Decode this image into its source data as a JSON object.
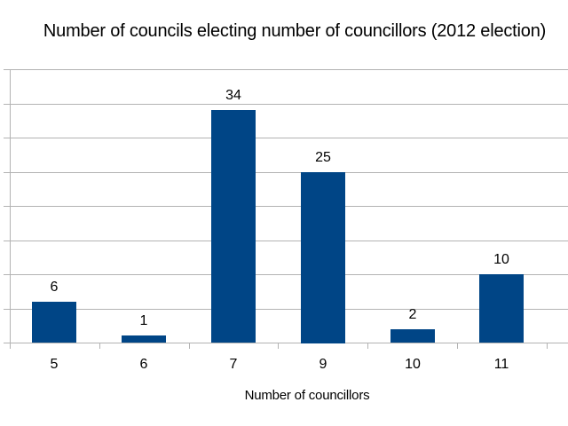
{
  "chart_data": {
    "type": "bar",
    "title": "Number of councils electing number of councillors (2012 election)",
    "xlabel": "Number of councillors",
    "ylabel": "",
    "categories": [
      "5",
      "6",
      "7",
      "9",
      "10",
      "11"
    ],
    "values": [
      6,
      1,
      34,
      25,
      2,
      10
    ],
    "data_labels": [
      "6",
      "1",
      "34",
      "25",
      "2",
      "10"
    ],
    "ylim": [
      0,
      40
    ],
    "y_grid_step": 5,
    "grid": true,
    "legend": null,
    "bar_color": "#004586",
    "grid_color": "#b3b3b3"
  }
}
